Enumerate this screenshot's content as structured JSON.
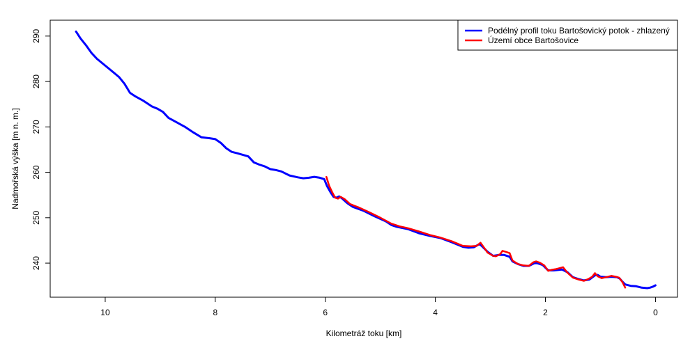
{
  "chart_data": {
    "type": "line",
    "xlabel": "Kilometráž toku [km]",
    "ylabel": "Nadmořská výška [m n. m.]",
    "xlim": [
      11,
      -0.4
    ],
    "ylim": [
      232.5,
      293.5
    ],
    "xticks": [
      10,
      8,
      6,
      4,
      2,
      0
    ],
    "yticks": [
      240,
      250,
      260,
      270,
      280,
      290
    ],
    "xtick_labels": [
      "10",
      "8",
      "6",
      "4",
      "2",
      "0"
    ],
    "ytick_labels": [
      "240",
      "250",
      "260",
      "270",
      "280",
      "290"
    ],
    "y_tick_label_orientation": "vertical",
    "grid": false,
    "legend_position": "top-right",
    "legend": [
      "Podélný profil toku Bartošovický potok - zhlazený",
      "Území obce Bartošovice"
    ],
    "series": [
      {
        "name": "Podélný profil toku Bartošovický potok - zhlazený",
        "color": "#0000ff",
        "x": [
          10.53,
          10.45,
          10.35,
          10.25,
          10.15,
          10.05,
          9.95,
          9.85,
          9.75,
          9.65,
          9.55,
          9.45,
          9.3,
          9.15,
          9.05,
          8.95,
          8.85,
          8.7,
          8.55,
          8.4,
          8.25,
          8.1,
          8.0,
          7.9,
          7.8,
          7.7,
          7.6,
          7.4,
          7.3,
          7.2,
          7.1,
          7.0,
          6.9,
          6.8,
          6.65,
          6.5,
          6.4,
          6.3,
          6.2,
          6.1,
          6.02,
          5.97,
          5.9,
          5.85,
          5.8,
          5.75,
          5.7,
          5.6,
          5.5,
          5.3,
          5.1,
          4.9,
          4.8,
          4.7,
          4.5,
          4.3,
          4.1,
          3.9,
          3.7,
          3.5,
          3.4,
          3.3,
          3.2,
          3.15,
          3.05,
          2.95,
          2.85,
          2.75,
          2.65,
          2.6,
          2.5,
          2.4,
          2.3,
          2.2,
          2.15,
          2.05,
          1.95,
          1.85,
          1.7,
          1.6,
          1.5,
          1.4,
          1.3,
          1.2,
          1.1,
          1.05,
          1.0,
          0.9,
          0.8,
          0.7,
          0.65,
          0.6,
          0.55,
          0.45,
          0.35,
          0.25,
          0.15,
          0.1,
          0.05,
          0.0
        ],
        "y": [
          291.0,
          289.5,
          288.0,
          286.3,
          285.0,
          284.0,
          283.0,
          282.0,
          281.0,
          279.5,
          277.5,
          276.7,
          275.7,
          274.5,
          274.0,
          273.3,
          272.0,
          271.0,
          270.0,
          268.8,
          267.7,
          267.5,
          267.3,
          266.5,
          265.3,
          264.5,
          264.2,
          263.5,
          262.2,
          261.7,
          261.3,
          260.7,
          260.5,
          260.2,
          259.3,
          258.9,
          258.7,
          258.8,
          259.0,
          258.8,
          258.5,
          257.0,
          255.5,
          254.6,
          254.4,
          254.7,
          254.3,
          253.2,
          252.4,
          251.5,
          250.3,
          249.2,
          248.4,
          248.0,
          247.5,
          246.6,
          246.0,
          245.5,
          244.6,
          243.6,
          243.4,
          243.5,
          244.2,
          243.7,
          242.5,
          241.6,
          241.8,
          241.8,
          241.4,
          240.4,
          239.8,
          239.4,
          239.4,
          240.0,
          240.0,
          239.6,
          238.4,
          238.4,
          238.6,
          238.0,
          236.9,
          236.5,
          236.2,
          236.4,
          237.3,
          237.4,
          237.0,
          236.9,
          237.0,
          236.9,
          236.6,
          235.9,
          235.3,
          235.0,
          234.9,
          234.6,
          234.5,
          234.6,
          234.8,
          235.1
        ]
      },
      {
        "name": "Území obce Bartošovice",
        "color": "#ff0000",
        "x": [
          5.98,
          5.93,
          5.87,
          5.82,
          5.77,
          5.72,
          5.65,
          5.55,
          5.4,
          5.2,
          5.0,
          4.8,
          4.65,
          4.5,
          4.3,
          4.1,
          3.9,
          3.7,
          3.5,
          3.35,
          3.25,
          3.18,
          3.12,
          3.05,
          2.95,
          2.9,
          2.82,
          2.78,
          2.72,
          2.65,
          2.6,
          2.5,
          2.4,
          2.3,
          2.22,
          2.17,
          2.1,
          2.02,
          1.95,
          1.9,
          1.8,
          1.68,
          1.6,
          1.5,
          1.4,
          1.3,
          1.22,
          1.15,
          1.1,
          1.05,
          0.98,
          0.9,
          0.8,
          0.72,
          0.66,
          0.6,
          0.55
        ],
        "y": [
          259.0,
          257.0,
          255.5,
          254.4,
          254.2,
          254.6,
          254.1,
          253.0,
          252.3,
          251.2,
          250.0,
          248.7,
          248.1,
          247.7,
          247.0,
          246.2,
          245.6,
          244.8,
          243.8,
          243.7,
          243.8,
          244.5,
          243.5,
          242.3,
          241.6,
          241.5,
          242.0,
          242.7,
          242.5,
          242.2,
          240.6,
          239.8,
          239.5,
          239.4,
          240.2,
          240.4,
          240.1,
          239.5,
          238.3,
          238.5,
          238.7,
          239.1,
          237.9,
          236.8,
          236.4,
          236.1,
          236.5,
          237.0,
          237.8,
          237.1,
          236.7,
          236.9,
          237.2,
          237.0,
          236.8,
          235.8,
          234.6
        ]
      }
    ]
  }
}
